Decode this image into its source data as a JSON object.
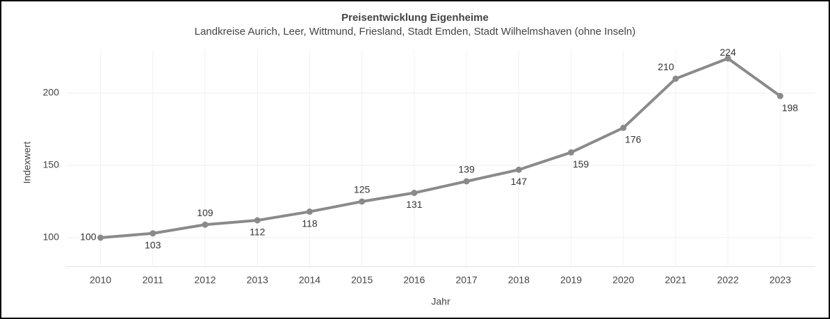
{
  "chart_data": {
    "type": "line",
    "title": "Preisentwicklung Eigenheime",
    "subtitle": "Landkreise Aurich, Leer, Wittmund, Friesland, Stadt Emden, Stadt Wilhelmshaven (ohne Inseln)",
    "x_label": "Jahr",
    "y_label": "Indexwert",
    "categories": [
      "2010",
      "2011",
      "2012",
      "2013",
      "2014",
      "2015",
      "2016",
      "2017",
      "2018",
      "2019",
      "2020",
      "2021",
      "2022",
      "2023"
    ],
    "series": [
      {
        "name": "Indexwert",
        "color": "#8a8a8a",
        "values": [
          100,
          103,
          109,
          112,
          118,
          125,
          131,
          139,
          147,
          159,
          176,
          210,
          224,
          198
        ]
      }
    ],
    "ylim": [
      80,
      230
    ],
    "yticks": [
      100,
      150,
      200
    ],
    "grid": true
  }
}
